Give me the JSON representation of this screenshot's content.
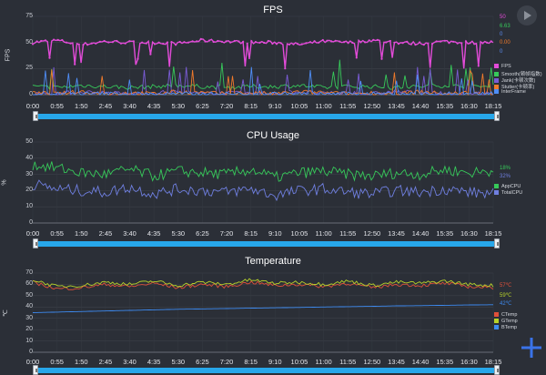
{
  "charts": [
    {
      "id": "fps",
      "title": "FPS",
      "ylabel": "FPS",
      "yticks": [
        "0",
        "25",
        "50",
        "75"
      ],
      "ymax": 75,
      "xticks": [
        "0:00",
        "0:55",
        "1:50",
        "2:45",
        "3:40",
        "4:35",
        "5:30",
        "6:25",
        "7:20",
        "8:15",
        "9:10",
        "10:05",
        "11:00",
        "11:55",
        "12:50",
        "13:45",
        "14:40",
        "15:35",
        "16:30",
        "18:15"
      ],
      "current_values": [
        {
          "text": "50",
          "color": "#e24bd8"
        },
        {
          "text": "6.63",
          "color": "#37c95a"
        },
        {
          "text": "0",
          "color": "#5b8bf0"
        },
        {
          "text": "0.00",
          "color": "#f07a2b"
        },
        {
          "text": "0",
          "color": "#5b8bf0"
        }
      ],
      "legend": [
        {
          "label": "FPS",
          "color": "#e24bd8"
        },
        {
          "label": "Smooth(顿帧指数)",
          "color": "#37c95a"
        },
        {
          "label": "Jank(卡顿次数)",
          "color": "#7a5cd6"
        },
        {
          "label": "Stutter(卡顿率)",
          "color": "#f07a2b"
        },
        {
          "label": "InterFrame",
          "color": "#4f8ef7"
        }
      ]
    },
    {
      "id": "cpu",
      "title": "CPU Usage",
      "ylabel": "%",
      "yticks": [
        "0",
        "10",
        "20",
        "30",
        "40",
        "50"
      ],
      "ymax": 50,
      "xticks": [
        "0:00",
        "0:55",
        "1:50",
        "2:45",
        "3:40",
        "4:35",
        "5:30",
        "6:25",
        "7:20",
        "8:15",
        "9:10",
        "10:05",
        "11:00",
        "11:55",
        "12:50",
        "13:45",
        "14:40",
        "15:35",
        "16:30",
        "18:15"
      ],
      "current_values": [
        {
          "text": "18%",
          "color": "#37c95a"
        },
        {
          "text": "32%",
          "color": "#6f7fe0"
        }
      ],
      "legend": [
        {
          "label": "AppCPU",
          "color": "#37c95a"
        },
        {
          "label": "TotalCPU",
          "color": "#6f7fe0"
        }
      ]
    },
    {
      "id": "temp",
      "title": "Temperature",
      "ylabel": "℃",
      "yticks": [
        "0",
        "10",
        "20",
        "30",
        "40",
        "50",
        "60",
        "70"
      ],
      "ymax": 70,
      "xticks": [
        "0:00",
        "0:55",
        "1:50",
        "2:45",
        "3:40",
        "4:35",
        "5:30",
        "6:25",
        "7:20",
        "8:15",
        "9:10",
        "10:05",
        "11:00",
        "11:55",
        "12:50",
        "13:45",
        "14:40",
        "15:35",
        "16:30",
        "18:15"
      ],
      "current_values": [
        {
          "text": "57℃",
          "color": "#e0503a"
        },
        {
          "text": "59℃",
          "color": "#b7d22a"
        },
        {
          "text": "42℃",
          "color": "#3d8af0"
        }
      ],
      "legend": [
        {
          "label": "CTemp",
          "color": "#e0503a"
        },
        {
          "label": "GTemp",
          "color": "#b7d22a"
        },
        {
          "label": "BTemp",
          "color": "#3d8af0"
        }
      ]
    }
  ],
  "icons": {
    "play": "play-icon",
    "add": "add-icon"
  },
  "chart_data": [
    {
      "type": "line",
      "title": "FPS",
      "ylabel": "FPS",
      "ylim": [
        0,
        75
      ],
      "x_range": [
        "0:00",
        "18:15"
      ],
      "series": [
        {
          "name": "FPS",
          "approx_level": 50,
          "values": [
            50,
            52,
            48,
            51,
            50,
            50,
            49,
            52,
            51,
            50,
            50,
            48,
            51,
            50,
            52,
            50,
            49,
            51,
            50,
            50
          ]
        },
        {
          "name": "Smooth(顿帧指数)",
          "approx_level": 7,
          "values": [
            7,
            6,
            8,
            7,
            6,
            7,
            8,
            7,
            6,
            7,
            7,
            8,
            6,
            7,
            7,
            6,
            7,
            8,
            7,
            7
          ]
        },
        {
          "name": "Jank(卡顿次数)",
          "approx_level": 1,
          "values": [
            1,
            0,
            2,
            1,
            0,
            1,
            2,
            0,
            1,
            0,
            1,
            2,
            0,
            1,
            0,
            2,
            1,
            0,
            1,
            0
          ]
        },
        {
          "name": "Stutter(卡顿率)",
          "approx_level": 1,
          "values": [
            1,
            0,
            2,
            0,
            1,
            0,
            2,
            1,
            0,
            1,
            0,
            2,
            1,
            0,
            1,
            0,
            2,
            0,
            1,
            0
          ]
        },
        {
          "name": "InterFrame",
          "approx_level": 0,
          "values": [
            0,
            0,
            0,
            0,
            0,
            0,
            0,
            0,
            0,
            0,
            0,
            0,
            0,
            0,
            0,
            0,
            0,
            0,
            0,
            0
          ]
        }
      ],
      "legend_position": "bottom-right",
      "current": {
        "FPS": 50,
        "Smooth": 6.63,
        "Jank": 0,
        "Stutter": 0.0,
        "InterFrame": 0
      }
    },
    {
      "type": "line",
      "title": "CPU Usage",
      "ylabel": "%",
      "ylim": [
        0,
        50
      ],
      "x_range": [
        "0:00",
        "18:15"
      ],
      "series": [
        {
          "name": "TotalCPU",
          "values": [
            36,
            34,
            31,
            30,
            33,
            29,
            32,
            31,
            30,
            33,
            28,
            31,
            32,
            30,
            29,
            31,
            30,
            33,
            31,
            32
          ]
        },
        {
          "name": "AppCPU",
          "values": [
            24,
            21,
            20,
            19,
            22,
            18,
            21,
            20,
            19,
            21,
            17,
            20,
            21,
            19,
            18,
            20,
            19,
            21,
            19,
            18
          ]
        }
      ],
      "legend_position": "bottom-right",
      "current": {
        "AppCPU": "18%",
        "TotalCPU": "32%"
      }
    },
    {
      "type": "line",
      "title": "Temperature",
      "ylabel": "℃",
      "ylim": [
        0,
        70
      ],
      "x_range": [
        "0:00",
        "18:15"
      ],
      "series": [
        {
          "name": "CTemp",
          "values": [
            62,
            56,
            57,
            60,
            58,
            61,
            57,
            60,
            58,
            62,
            59,
            60,
            58,
            61,
            57,
            60,
            59,
            61,
            58,
            57
          ]
        },
        {
          "name": "GTemp",
          "values": [
            64,
            58,
            59,
            62,
            60,
            63,
            59,
            62,
            60,
            64,
            61,
            62,
            60,
            63,
            59,
            62,
            61,
            63,
            60,
            59
          ]
        },
        {
          "name": "BTemp",
          "values": [
            35,
            35.5,
            36,
            36.5,
            37,
            37.5,
            38,
            38.3,
            38.6,
            39,
            39.3,
            39.6,
            40,
            40.3,
            40.6,
            41,
            41.2,
            41.5,
            41.8,
            42
          ]
        }
      ],
      "legend_position": "bottom-right",
      "current": {
        "CTemp": "57℃",
        "GTemp": "59℃",
        "BTemp": "42℃"
      }
    }
  ]
}
